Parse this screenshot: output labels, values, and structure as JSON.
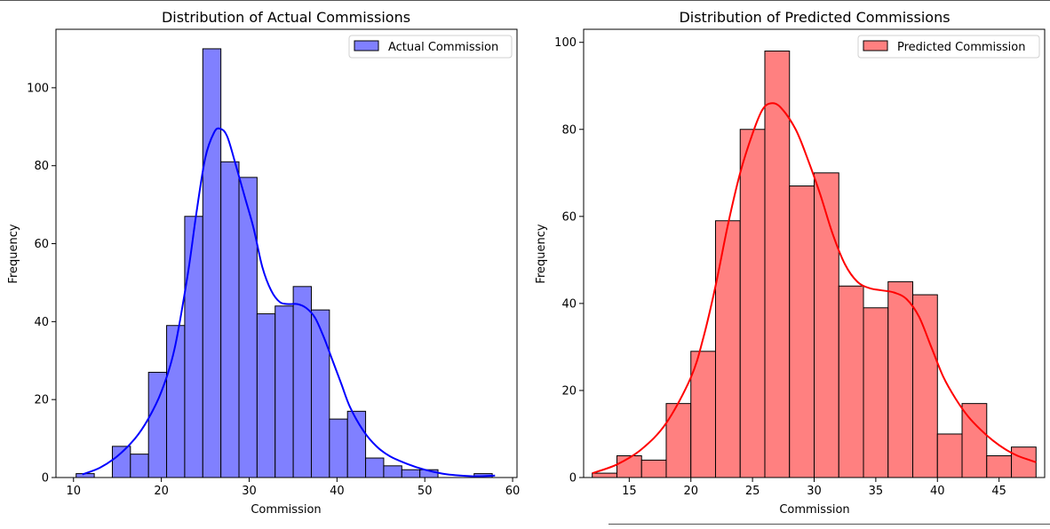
{
  "chart_data": [
    {
      "type": "bar",
      "title": "Distribution of Actual Commissions",
      "xlabel": "Commission",
      "ylabel": "Frequency",
      "xlim": [
        8,
        60.5
      ],
      "ylim": [
        0,
        115
      ],
      "xticks": [
        10,
        20,
        30,
        40,
        50,
        60
      ],
      "yticks": [
        0,
        20,
        40,
        60,
        80,
        100
      ],
      "legend_position": "top-right",
      "grid": false,
      "bin_edges": [
        10.3,
        12.36,
        14.42,
        16.48,
        18.54,
        20.6,
        22.66,
        24.72,
        26.78,
        28.84,
        30.9,
        32.96,
        35.02,
        37.08,
        39.14,
        41.2,
        43.26,
        45.32,
        47.38,
        49.44,
        51.5,
        53.56,
        55.62,
        57.68
      ],
      "series": [
        {
          "name": "Actual Commission",
          "color": "#0000ff",
          "bar_fill": "#8080ff",
          "values": [
            1,
            0,
            8,
            6,
            27,
            39,
            67,
            110,
            81,
            77,
            42,
            44,
            49,
            43,
            15,
            17,
            5,
            3,
            2,
            2,
            0,
            0,
            1
          ]
        }
      ],
      "kde": {
        "color": "#0000ff",
        "x": [
          11,
          13,
          15,
          17,
          18.5,
          20,
          21.5,
          23,
          24,
          25,
          26,
          26.7,
          27.5,
          28.5,
          29.5,
          30.5,
          31.5,
          32.5,
          33.5,
          34.5,
          35.5,
          36.5,
          37.5,
          38.5,
          39.5,
          40.5,
          41.5,
          43,
          44.5,
          46,
          48,
          50,
          52,
          54,
          56,
          58
        ],
        "y": [
          0.8,
          2.5,
          5.5,
          10,
          15,
          22,
          33,
          52,
          68,
          82,
          88.5,
          89.5,
          87.5,
          80,
          72,
          64,
          54,
          48,
          45,
          44.5,
          44.5,
          43.5,
          41,
          36,
          30,
          24,
          18,
          12,
          8,
          5.5,
          3.5,
          2,
          1,
          0.5,
          0.3,
          0.5
        ]
      }
    },
    {
      "type": "bar",
      "title": "Distribution of Predicted Commissions",
      "xlabel": "Commission",
      "ylabel": "Frequency",
      "xlim": [
        11.3,
        48.7
      ],
      "ylim": [
        0,
        103
      ],
      "xticks": [
        15,
        20,
        25,
        30,
        35,
        40,
        45
      ],
      "yticks": [
        0,
        20,
        40,
        60,
        80,
        100
      ],
      "legend_position": "top-right",
      "grid": false,
      "bin_edges": [
        12,
        14,
        16,
        18,
        20,
        22,
        24,
        26,
        28,
        30,
        32,
        34,
        36,
        38,
        40,
        42,
        44,
        46,
        48
      ],
      "series": [
        {
          "name": "Predicted Commission",
          "color": "#ff0000",
          "bar_fill": "#ff8080",
          "values": [
            1,
            5,
            4,
            17,
            29,
            59,
            80,
            98,
            67,
            70,
            44,
            39,
            45,
            42,
            10,
            17,
            5,
            7
          ]
        }
      ],
      "kde": {
        "color": "#ff0000",
        "x": [
          12,
          14,
          16,
          18,
          20,
          21,
          22,
          23,
          24,
          25,
          25.8,
          26.5,
          27.3,
          28.5,
          29.5,
          30.5,
          31.5,
          32.5,
          33.5,
          34.5,
          35.5,
          36.5,
          37.5,
          38.5,
          39.5,
          40.5,
          41.5,
          42.5,
          43.5,
          44.5,
          45.5,
          46.5,
          47.5,
          48
        ],
        "y": [
          1,
          3,
          6.5,
          12.5,
          23,
          32,
          44,
          58,
          70,
          79,
          84.5,
          86,
          85,
          80,
          73,
          65,
          56,
          49,
          45,
          43.5,
          43,
          42.5,
          41,
          37,
          30,
          23,
          18,
          14,
          11,
          8.5,
          6.5,
          5,
          4,
          3.5
        ]
      }
    }
  ]
}
